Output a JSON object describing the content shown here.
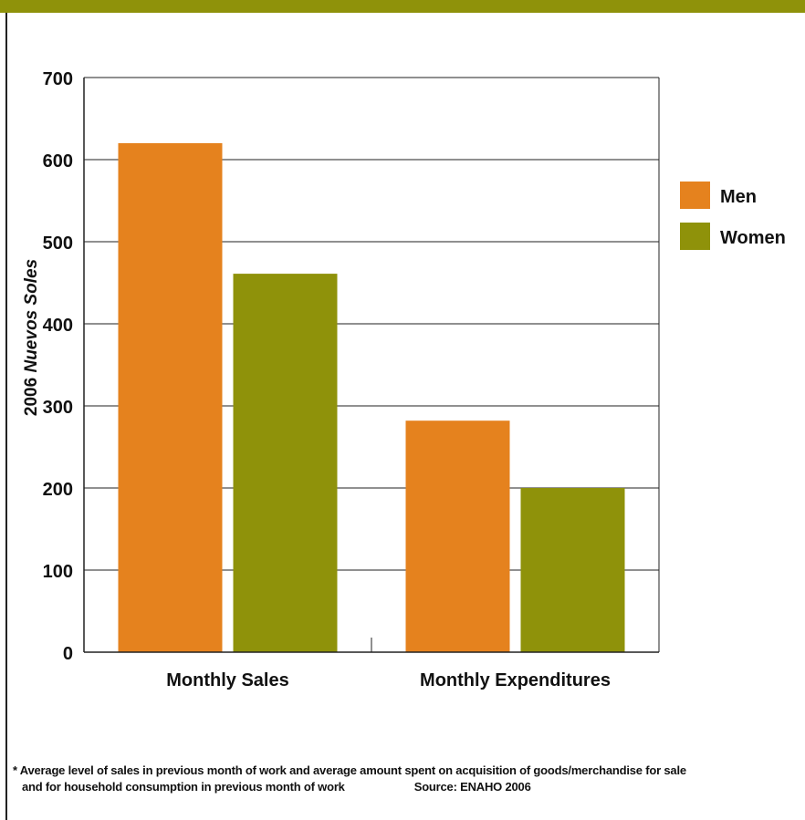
{
  "chart_data": {
    "type": "bar",
    "categories": [
      "Monthly Sales",
      "Monthly Expenditures"
    ],
    "series": [
      {
        "name": "Men",
        "color": "#e5821e",
        "values": [
          620,
          282
        ]
      },
      {
        "name": "Women",
        "color": "#8f920a",
        "values": [
          461,
          200
        ]
      }
    ],
    "ylabel_year": "2006",
    "ylabel_unit": "Nuevos Soles",
    "ylim": [
      0,
      700
    ],
    "yticks": [
      0,
      100,
      200,
      300,
      400,
      500,
      600,
      700
    ],
    "grid": true,
    "legend_position": "right"
  },
  "footnote": {
    "line1": "* Average level of sales in previous month of work and average amount spent on acquisition of goods/merchandise for sale",
    "line2": "and for household consumption in previous month of work",
    "source": "Source: ENAHO 2006"
  },
  "colors": {
    "top_bar": "#8f920a"
  }
}
